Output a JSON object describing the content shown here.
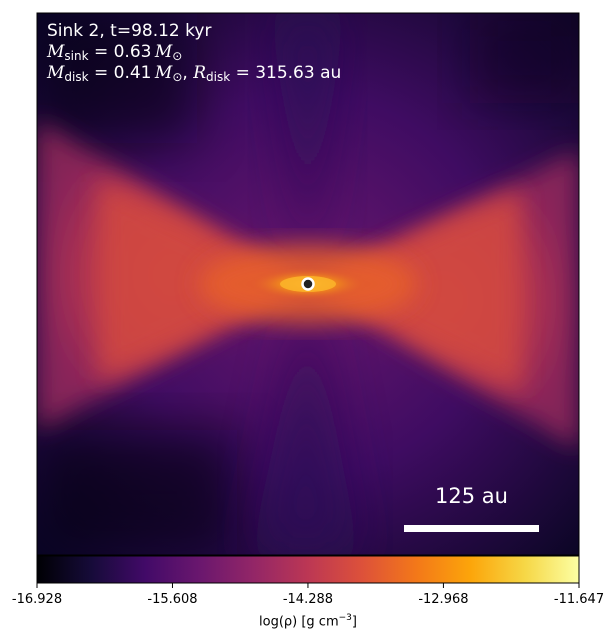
{
  "chart_data": {
    "type": "heatmap",
    "annotations": {
      "line1": "Sink 2, t=98.12 kyr",
      "sink_mass_value": "= 0.63",
      "disk_mass_value": "= 0.41",
      "disk_radius_value": "= 315.63 au"
    },
    "scale_bar": {
      "label": "125 au",
      "length_au": 125
    },
    "colorbar": {
      "label_text": "log(ρ) [g cm",
      "label_exp": "−3",
      "label_close": "]",
      "ticks": [
        "-16.928",
        "-15.608",
        "-14.288",
        "-12.968",
        "-11.647"
      ],
      "range": [
        -16.928,
        -11.647
      ],
      "colormap": "inferno",
      "orientation": "horizontal",
      "placement": "bottom"
    },
    "grid": false,
    "sink_marker": {
      "shape": "circle",
      "fill": "#222222",
      "edge": "#ffffff"
    }
  }
}
